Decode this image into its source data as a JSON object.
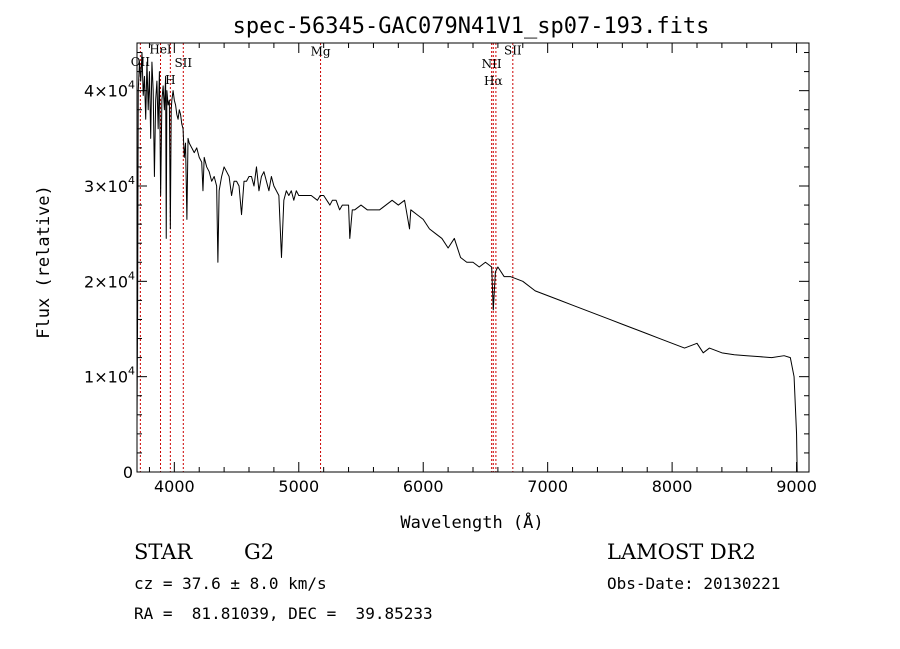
{
  "chart_data": {
    "type": "line",
    "title": "spec-56345-GAC079N41V1_sp07-193.fits",
    "xlabel": "Wavelength (Å)",
    "ylabel": "Flux (relative)",
    "xlim": [
      3700,
      9100
    ],
    "ylim": [
      0,
      45000
    ],
    "xticks": [
      {
        "value": 4000,
        "label": "4000"
      },
      {
        "value": 5000,
        "label": "5000"
      },
      {
        "value": 6000,
        "label": "6000"
      },
      {
        "value": 7000,
        "label": "7000"
      },
      {
        "value": 8000,
        "label": "8000"
      },
      {
        "value": 9000,
        "label": "9000"
      }
    ],
    "yticks": [
      {
        "value": 0,
        "label": "0"
      },
      {
        "value": 10000,
        "label": "1×10",
        "exp": "4"
      },
      {
        "value": 20000,
        "label": "2×10",
        "exp": "4"
      },
      {
        "value": 30000,
        "label": "3×10",
        "exp": "4"
      },
      {
        "value": 40000,
        "label": "4×10",
        "exp": "4"
      }
    ],
    "grid": false,
    "series": [
      {
        "color": "#000000",
        "x": [
          3700,
          3705,
          3710,
          3720,
          3730,
          3740,
          3750,
          3760,
          3770,
          3780,
          3790,
          3800,
          3810,
          3820,
          3830,
          3840,
          3850,
          3860,
          3870,
          3880,
          3890,
          3900,
          3910,
          3920,
          3930,
          3935,
          3940,
          3950,
          3960,
          3968,
          3975,
          3980,
          3990,
          4000,
          4010,
          4020,
          4030,
          4040,
          4050,
          4060,
          4070,
          4080,
          4090,
          4101,
          4110,
          4120,
          4140,
          4160,
          4180,
          4200,
          4220,
          4230,
          4240,
          4260,
          4280,
          4300,
          4320,
          4340,
          4350,
          4360,
          4380,
          4400,
          4420,
          4440,
          4460,
          4480,
          4500,
          4520,
          4540,
          4560,
          4580,
          4600,
          4620,
          4640,
          4660,
          4680,
          4700,
          4720,
          4740,
          4760,
          4780,
          4800,
          4820,
          4840,
          4861,
          4880,
          4900,
          4920,
          4940,
          4960,
          4980,
          5000,
          5050,
          5100,
          5150,
          5172,
          5200,
          5250,
          5270,
          5300,
          5328,
          5350,
          5400,
          5410,
          5430,
          5450,
          5500,
          5550,
          5600,
          5650,
          5700,
          5750,
          5800,
          5850,
          5890,
          5900,
          5950,
          6000,
          6050,
          6100,
          6150,
          6200,
          6250,
          6300,
          6350,
          6400,
          6450,
          6500,
          6550,
          6563,
          6580,
          6600,
          6650,
          6700,
          6800,
          6900,
          7000,
          7100,
          7200,
          7300,
          7400,
          7500,
          7600,
          7700,
          7800,
          7900,
          8000,
          8100,
          8200,
          8250,
          8300,
          8400,
          8500,
          8600,
          8700,
          8800,
          8900,
          8950,
          8980,
          9000,
          9005
        ],
        "y": [
          5000,
          17000,
          40000,
          43000,
          41000,
          44000,
          39500,
          41500,
          37000,
          43000,
          38000,
          42000,
          35000,
          43000,
          40000,
          31000,
          39000,
          41000,
          36000,
          42000,
          29000,
          39000,
          40500,
          38000,
          41500,
          24500,
          40000,
          38500,
          39000,
          25500,
          38000,
          39000,
          40000,
          39000,
          38500,
          37500,
          37000,
          38000,
          37500,
          36500,
          36000,
          33000,
          34500,
          26500,
          35000,
          34500,
          34000,
          33500,
          34000,
          33000,
          32500,
          29500,
          33000,
          32000,
          31500,
          30500,
          31000,
          30000,
          22000,
          29500,
          31000,
          32000,
          31500,
          31000,
          29000,
          30500,
          30500,
          30000,
          27000,
          30500,
          30500,
          31000,
          31000,
          30000,
          32000,
          29500,
          31000,
          31500,
          30500,
          29500,
          31000,
          30000,
          29500,
          29000,
          22500,
          28500,
          29500,
          29000,
          29500,
          28500,
          29500,
          29000,
          29000,
          29000,
          28500,
          29000,
          29000,
          28000,
          28500,
          28500,
          27500,
          28000,
          28000,
          24500,
          27500,
          27500,
          28000,
          27500,
          27500,
          27500,
          28000,
          28500,
          28000,
          28500,
          25500,
          27500,
          27000,
          26500,
          25500,
          25000,
          24500,
          23500,
          24500,
          22500,
          22000,
          22000,
          21500,
          22000,
          21500,
          17000,
          21000,
          21500,
          20500,
          20500,
          20000,
          19000,
          18500,
          18000,
          17500,
          17000,
          16500,
          16000,
          15500,
          15000,
          14500,
          14000,
          13500,
          13000,
          13500,
          12500,
          13000,
          12500,
          12300,
          12200,
          12100,
          12000,
          12200,
          12000,
          10000,
          4000,
          0
        ]
      }
    ],
    "line_markers": [
      {
        "x": 3727,
        "label": "OII",
        "label_y": 42600
      },
      {
        "x": 3889,
        "label": "HeI",
        "label_y": 43900
      },
      {
        "x": 3968,
        "label": "H",
        "label_y": 40700
      },
      {
        "x": 4072,
        "label": "SII",
        "label_y": 42500
      },
      {
        "x": 5175,
        "label": "Mg",
        "label_y": 43700
      },
      {
        "x": 6550,
        "label": "NII",
        "label_y": 42400
      },
      {
        "x": 6563,
        "label": "Hα",
        "label_y": 40600
      },
      {
        "x": 6584,
        "label": "",
        "label_y": 0
      },
      {
        "x": 6720,
        "label": "SII",
        "label_y": 43800
      }
    ]
  },
  "info": {
    "object_class": "STAR",
    "subclass": "G2",
    "survey": "LAMOST DR2",
    "redshift_text": "cz = 37.6 ± 8.0 km/s",
    "obs_date": "Obs-Date: 20130221",
    "coords": "RA =  81.81039, DEC =  39.85233"
  },
  "colors": {
    "spectrum": "#000000",
    "marker": "#cc0000"
  }
}
